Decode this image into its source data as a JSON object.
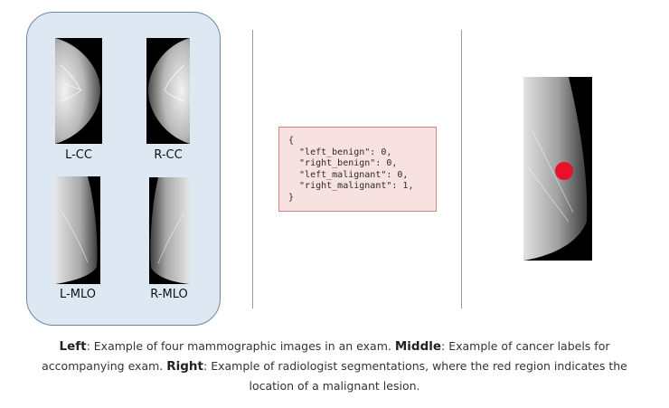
{
  "panel_left": {
    "views": [
      {
        "label": "L-CC"
      },
      {
        "label": "R-CC"
      },
      {
        "label": "L-MLO"
      },
      {
        "label": "R-MLO"
      }
    ]
  },
  "panel_middle": {
    "json_lines": [
      "{",
      "  \"left_benign\": 0,",
      "  \"right_benign\": 0,",
      "  \"left_malignant\": 0,",
      "  \"right_malignant\": 1,",
      "}"
    ]
  },
  "caption": {
    "left_label": "Left",
    "left_text": ": Example of four mammographic images in an exam. ",
    "middle_label": "Middle",
    "middle_text": ": Example of cancer labels for accompanying exam. ",
    "right_label": "Right",
    "right_text": ": Example of radiologist segmentations, where the red region indicates the location of a malignant lesion."
  },
  "colors": {
    "panel_fill": "#dde8f2",
    "panel_border": "#6f8798",
    "label_box_fill": "#f8e1e1",
    "label_box_border": "#d08484",
    "lesion": "#e8102a"
  }
}
